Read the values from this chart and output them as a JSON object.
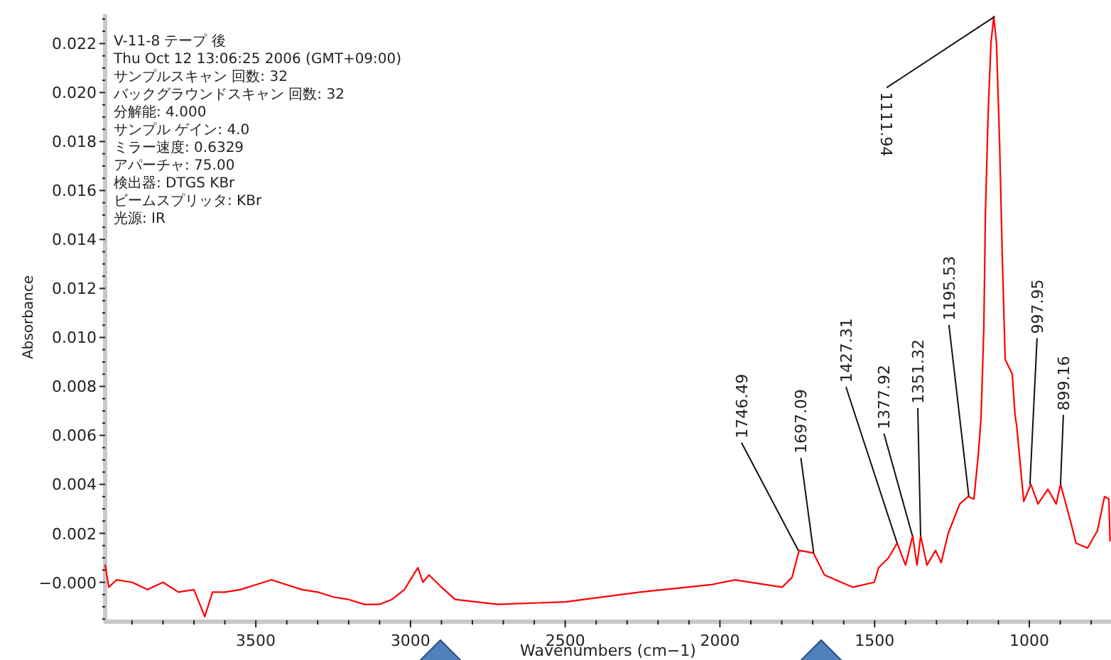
{
  "chart_data": {
    "type": "line",
    "xlabel": "Wavenumbers (cm−1)",
    "ylabel": "Absorbance",
    "xlim": [
      3987,
      736
    ],
    "ylim": [
      -0.00155,
      0.0232
    ],
    "xticks": [
      3500,
      3000,
      2500,
      2000,
      1500,
      1000
    ],
    "yticks": [
      {
        "value": 0,
        "label": "−0.000"
      },
      {
        "value": 0.002,
        "label": "0.002"
      },
      {
        "value": 0.004,
        "label": "0.004"
      },
      {
        "value": 0.006,
        "label": "0.006"
      },
      {
        "value": 0.008,
        "label": "0.008"
      },
      {
        "value": 0.01,
        "label": "0.010"
      },
      {
        "value": 0.012,
        "label": "0.012"
      },
      {
        "value": 0.014,
        "label": "0.014"
      },
      {
        "value": 0.016,
        "label": "0.016"
      },
      {
        "value": 0.018,
        "label": "0.018"
      },
      {
        "value": 0.02,
        "label": "0.020"
      },
      {
        "value": 0.022,
        "label": "0.022"
      }
    ],
    "x": [
      3987,
      3975,
      3950,
      3900,
      3850,
      3800,
      3750,
      3700,
      3665,
      3640,
      3600,
      3550,
      3500,
      3450,
      3400,
      3350,
      3300,
      3250,
      3200,
      3150,
      3100,
      3060,
      3020,
      2976,
      2960,
      2940,
      2900,
      2856,
      2719,
      2500,
      2259,
      2029,
      1951,
      1799,
      1767,
      1744,
      1698,
      1662,
      1570,
      1501,
      1487,
      1455,
      1427,
      1400,
      1377,
      1363,
      1351,
      1331,
      1303,
      1285,
      1262,
      1225,
      1198,
      1179,
      1165,
      1156,
      1147,
      1142,
      1133,
      1124,
      1115,
      1106,
      1096,
      1087,
      1078,
      1055,
      1046,
      1041,
      1018,
      995,
      972,
      940,
      913,
      899,
      867,
      849,
      812,
      780,
      757,
      743,
      739
    ],
    "series": [
      {
        "color": "#ff0000",
        "values": [
          0.0007,
          -0.0002,
          0.0001,
          0.0,
          -0.0003,
          0.0,
          -0.0004,
          -0.0003,
          -0.0014,
          -0.0004,
          -0.0004,
          -0.0003,
          -0.0001,
          0.0001,
          -0.0001,
          -0.0003,
          -0.0004,
          -0.0006,
          -0.0007,
          -0.0009,
          -0.0009,
          -0.0007,
          -0.0003,
          0.0006,
          0.0,
          0.0003,
          -0.0002,
          -0.0007,
          -0.0009,
          -0.0008,
          -0.0004,
          -0.0001,
          0.0001,
          -0.0002,
          0.0002,
          0.0013,
          0.0012,
          0.0003,
          -0.0002,
          0.0,
          0.0006,
          0.001,
          0.0016,
          0.0007,
          0.0019,
          0.0007,
          0.0019,
          0.0007,
          0.0013,
          0.0008,
          0.002,
          0.0032,
          0.0035,
          0.0034,
          0.0052,
          0.0067,
          0.0104,
          0.015,
          0.0192,
          0.022,
          0.0231,
          0.022,
          0.0179,
          0.0131,
          0.0091,
          0.0085,
          0.0068,
          0.0064,
          0.0033,
          0.004,
          0.0032,
          0.0038,
          0.0032,
          0.004,
          0.0025,
          0.0016,
          0.0014,
          0.0021,
          0.0035,
          0.0034,
          0.0017
        ]
      }
    ],
    "annotations": [
      "V-11-8 テープ 後",
      "Thu Oct 12 13:06:25 2006 (GMT+09:00)",
      "サンプルスキャン 回数: 32",
      "バックグラウンドスキャン 回数: 32",
      "分解能: 4.000",
      "サンプル ゲイン: 4.0",
      "ミラー速度: 0.6329",
      "アパーチャ: 75.00",
      "検出器: DTGS KBr",
      "ビームスプリッタ: KBr",
      "光源: IR",
      {
        "text": "1746.49",
        "x": 1746.49,
        "y": 0.0013
      },
      {
        "text": "1697.09",
        "x": 1697.09,
        "y": 0.0012
      },
      {
        "text": "1427.31",
        "x": 1427.31,
        "y": 0.0016
      },
      {
        "text": "1377.92",
        "x": 1377.92,
        "y": 0.0019
      },
      {
        "text": "1351.32",
        "x": 1351.32,
        "y": 0.0019
      },
      {
        "text": "1195.53",
        "x": 1195.53,
        "y": 0.0035
      },
      {
        "text": "1111.94",
        "x": 1111.94,
        "y": 0.0231
      },
      {
        "text": "997.95",
        "x": 997.95,
        "y": 0.004
      },
      {
        "text": "899.16",
        "x": 899.16,
        "y": 0.004
      }
    ]
  }
}
